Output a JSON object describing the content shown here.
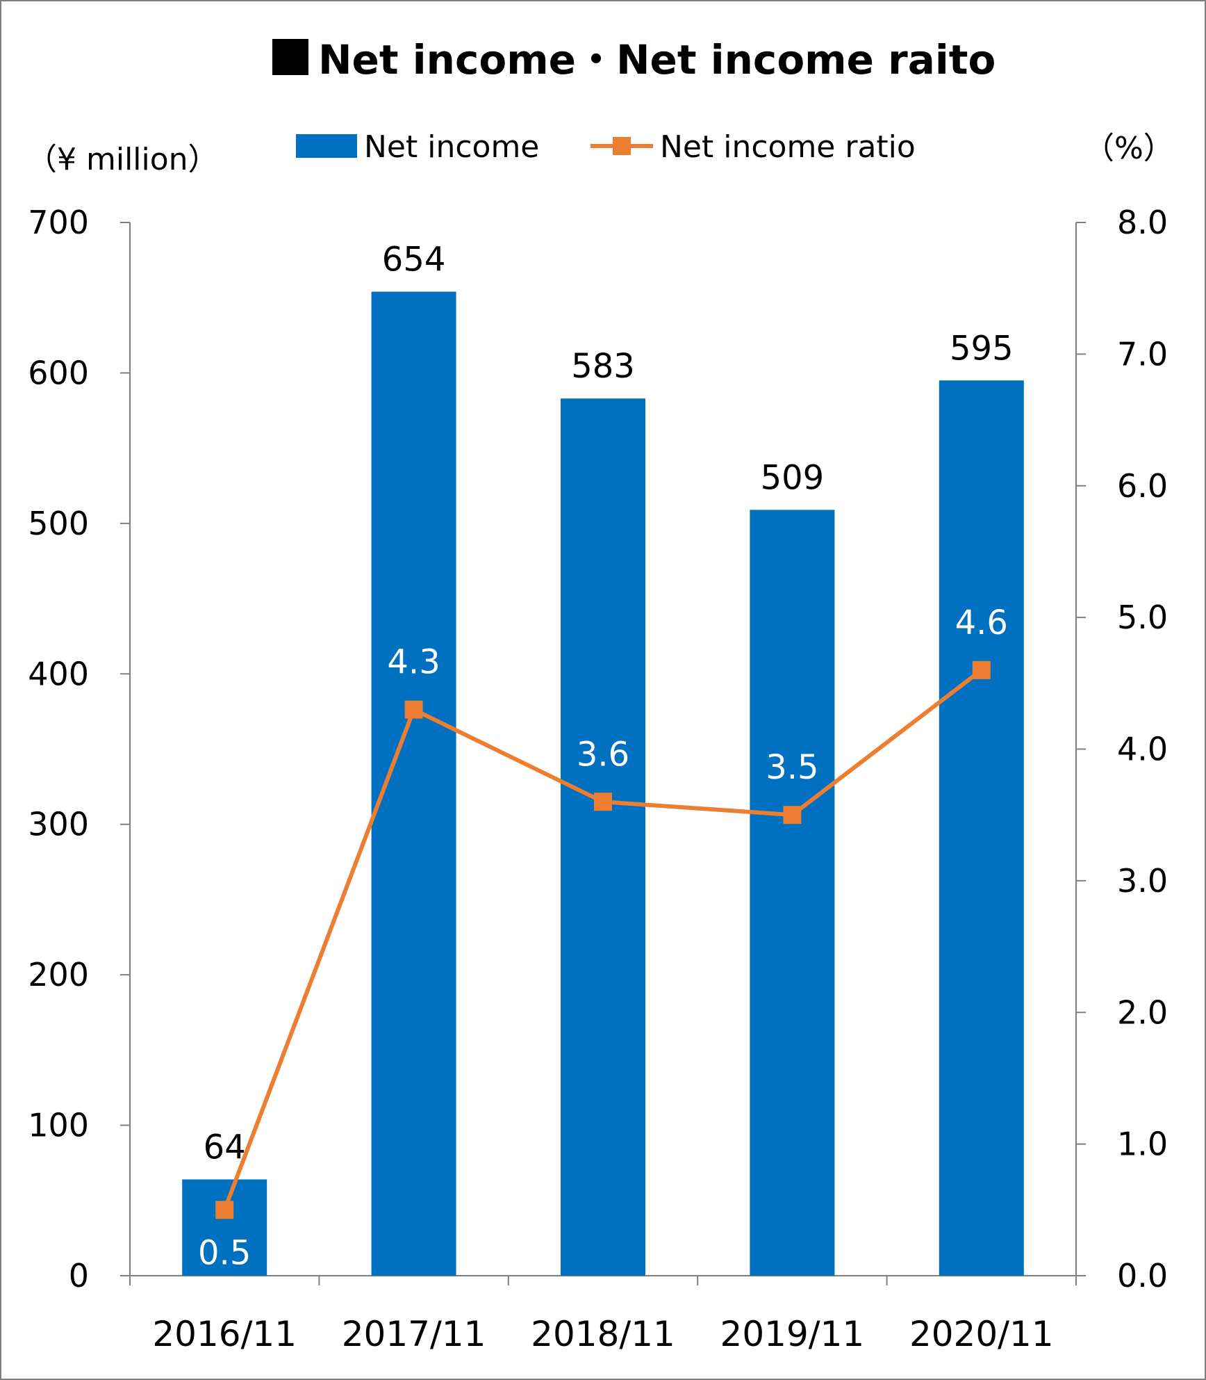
{
  "chart_data": {
    "type": "bar+line",
    "title": "Net income・Net income raito",
    "categories": [
      "2016/11",
      "2017/11",
      "2018/11",
      "2019/11",
      "2020/11"
    ],
    "series": [
      {
        "name": "Net income",
        "type": "bar",
        "axis": "left",
        "values": [
          64,
          654,
          583,
          509,
          595
        ],
        "color": "#0070c0"
      },
      {
        "name": "Net income ratio",
        "type": "line",
        "axis": "right",
        "values": [
          0.5,
          4.3,
          3.6,
          3.5,
          4.6
        ],
        "color": "#ed7d31",
        "marker": "square"
      }
    ],
    "y_left": {
      "unit_label": "（¥ million）",
      "lim": [
        0,
        700
      ],
      "ticks": [
        "0",
        "100",
        "200",
        "300",
        "400",
        "500",
        "600",
        "700"
      ]
    },
    "y_right": {
      "unit_label": "（%）",
      "lim": [
        0,
        8
      ],
      "ticks": [
        "0.0",
        "1.0",
        "2.0",
        "3.0",
        "4.0",
        "5.0",
        "6.0",
        "7.0",
        "8.0"
      ]
    },
    "legend_position": "top",
    "grid": false,
    "bar_labels": [
      "64",
      "654",
      "583",
      "509",
      "595"
    ],
    "line_labels": [
      "0.5",
      "4.3",
      "3.6",
      "3.5",
      "4.6"
    ]
  }
}
